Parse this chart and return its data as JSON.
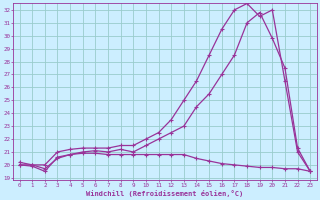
{
  "xlabel": "Windchill (Refroidissement éolien,°C)",
  "xlim": [
    0,
    23
  ],
  "ylim": [
    19,
    32
  ],
  "xticks": [
    0,
    1,
    2,
    3,
    4,
    5,
    6,
    7,
    8,
    9,
    10,
    11,
    12,
    13,
    14,
    15,
    16,
    17,
    18,
    19,
    20,
    21,
    22,
    23
  ],
  "yticks": [
    19,
    20,
    21,
    22,
    23,
    24,
    25,
    26,
    27,
    28,
    29,
    30,
    31,
    32
  ],
  "bg_color": "#cceeff",
  "grid_color": "#99cccc",
  "line_color": "#993399",
  "curve1_x": [
    0,
    1,
    2,
    3,
    4,
    5,
    6,
    7,
    8,
    9,
    10,
    11,
    12,
    13,
    14,
    15,
    16,
    17,
    18,
    19,
    20,
    21,
    22,
    23
  ],
  "curve1_y": [
    20.0,
    19.9,
    19.5,
    20.6,
    20.8,
    20.9,
    20.9,
    20.8,
    20.8,
    20.8,
    20.8,
    20.8,
    20.8,
    20.8,
    20.5,
    20.3,
    20.1,
    20.0,
    19.9,
    19.8,
    19.8,
    19.7,
    19.7,
    19.5
  ],
  "curve2_x": [
    0,
    1,
    2,
    3,
    4,
    5,
    6,
    7,
    8,
    9,
    10,
    11,
    12,
    13,
    14,
    15,
    16,
    17,
    18,
    19,
    20,
    21,
    22,
    23
  ],
  "curve2_y": [
    20.0,
    20.0,
    19.7,
    20.5,
    20.8,
    21.0,
    21.1,
    21.0,
    21.2,
    21.0,
    21.5,
    22.0,
    22.5,
    23.0,
    24.5,
    25.5,
    27.0,
    28.5,
    31.0,
    31.8,
    29.8,
    27.5,
    21.3,
    19.5
  ],
  "curve3_x": [
    0,
    1,
    2,
    3,
    4,
    5,
    6,
    7,
    8,
    9,
    10,
    11,
    12,
    13,
    14,
    15,
    16,
    17,
    18,
    19,
    20,
    21,
    22,
    23
  ],
  "curve3_y": [
    20.2,
    20.0,
    20.0,
    21.0,
    21.2,
    21.3,
    21.3,
    21.3,
    21.5,
    21.5,
    22.0,
    22.5,
    23.5,
    25.0,
    26.5,
    28.5,
    30.5,
    32.0,
    32.5,
    31.5,
    32.0,
    26.5,
    21.0,
    19.5
  ]
}
